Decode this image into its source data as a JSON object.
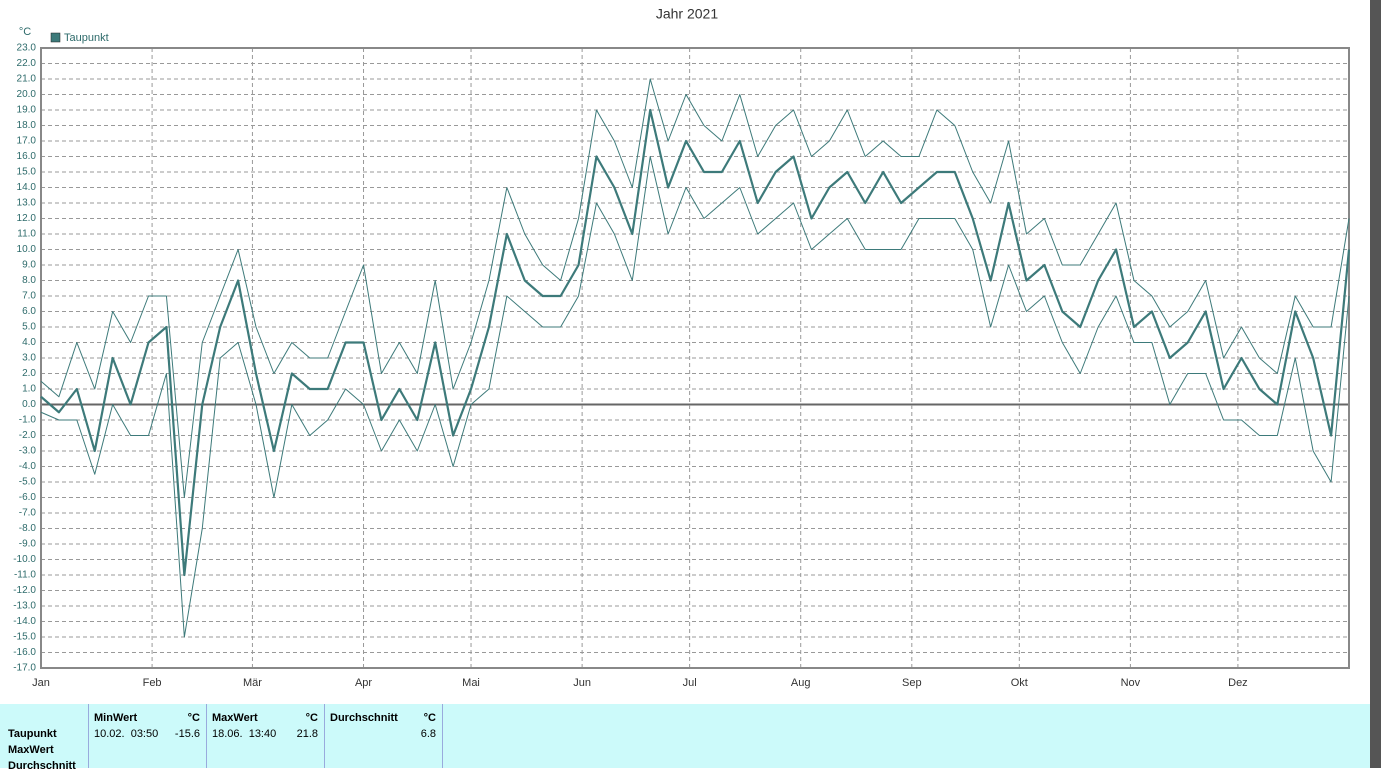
{
  "chart_data": {
    "type": "line",
    "title": "Jahr 2021",
    "y_unit": "°C",
    "x": [
      0,
      5,
      10,
      15,
      20,
      25,
      30,
      35,
      40,
      45,
      50,
      55,
      60,
      65,
      70,
      75,
      80,
      85,
      90,
      95,
      100,
      105,
      110,
      115,
      120,
      125,
      130,
      135,
      140,
      145,
      150,
      155,
      160,
      165,
      170,
      175,
      180,
      185,
      190,
      195,
      200,
      205,
      210,
      215,
      220,
      225,
      230,
      235,
      240,
      245,
      250,
      255,
      260,
      265,
      270,
      275,
      280,
      285,
      290,
      295,
      300,
      305,
      310,
      315,
      320,
      325,
      330,
      335,
      340,
      345,
      350,
      355,
      360,
      365
    ],
    "series": [
      {
        "name": "Taupunkt",
        "color": "#3d7a7a",
        "width": 2.2,
        "values": [
          0.5,
          -0.5,
          1,
          -3,
          3,
          0,
          4,
          5,
          -11,
          0,
          5,
          8,
          2,
          -3,
          2,
          1,
          1,
          4,
          4,
          -1,
          1,
          -1,
          4,
          -2,
          1,
          5,
          11,
          8,
          7,
          7,
          9,
          16,
          14,
          11,
          19,
          14,
          17,
          15,
          15,
          17,
          13,
          15,
          16,
          12,
          14,
          15,
          13,
          15,
          13,
          14,
          15,
          15,
          12,
          8,
          13,
          8,
          9,
          6,
          5,
          8,
          10,
          5,
          6,
          3,
          4,
          6,
          1,
          3,
          1,
          0,
          6,
          3,
          -2,
          10
        ]
      },
      {
        "color": "#3d7a7a",
        "width": 1,
        "values": [
          -0.5,
          -1,
          -1,
          -4.5,
          0,
          -2,
          -2,
          2,
          -15,
          -8,
          3,
          4,
          0,
          -6,
          0,
          -2,
          -1,
          1,
          0,
          -3,
          -1,
          -3,
          0,
          -4,
          0,
          1,
          7,
          6,
          5,
          5,
          7,
          13,
          11,
          8,
          16,
          11,
          14,
          12,
          13,
          14,
          11,
          12,
          13,
          10,
          11,
          12,
          10,
          10,
          10,
          12,
          12,
          12,
          10,
          5,
          9,
          6,
          7,
          4,
          2,
          5,
          7,
          4,
          4,
          0,
          2,
          2,
          -1,
          -1,
          -2,
          -2,
          3,
          -3,
          -5,
          7
        ]
      },
      {
        "color": "#3d7a7a",
        "width": 1,
        "values": [
          1.5,
          0.5,
          4,
          1,
          6,
          4,
          7,
          7,
          -6,
          4,
          7,
          10,
          5,
          2,
          4,
          3,
          3,
          6,
          9,
          2,
          4,
          2,
          8,
          1,
          4,
          8,
          14,
          11,
          9,
          8,
          12,
          19,
          17,
          14,
          21,
          17,
          20,
          18,
          17,
          20,
          16,
          18,
          19,
          16,
          17,
          19,
          16,
          17,
          16,
          16,
          19,
          18,
          15,
          13,
          17,
          11,
          12,
          9,
          9,
          11,
          13,
          8,
          7,
          5,
          6,
          8,
          3,
          5,
          3,
          2,
          7,
          5,
          5,
          12
        ]
      }
    ],
    "xlim": [
      0,
      365
    ],
    "xticks": [
      {
        "value": 0,
        "label": "Jan"
      },
      {
        "value": 31,
        "label": "Feb"
      },
      {
        "value": 59,
        "label": "Mär"
      },
      {
        "value": 90,
        "label": "Apr"
      },
      {
        "value": 120,
        "label": "Mai"
      },
      {
        "value": 151,
        "label": "Jun"
      },
      {
        "value": 181,
        "label": "Jul"
      },
      {
        "value": 212,
        "label": "Aug"
      },
      {
        "value": 243,
        "label": "Sep"
      },
      {
        "value": 273,
        "label": "Okt"
      },
      {
        "value": 304,
        "label": "Nov"
      },
      {
        "value": 334,
        "label": "Dez"
      }
    ],
    "ylim": [
      -17,
      23
    ],
    "yticks": [
      {
        "value": 23,
        "label": "23.0"
      },
      {
        "value": 22,
        "label": "22.0"
      },
      {
        "value": 21,
        "label": "21.0"
      },
      {
        "value": 20,
        "label": "20.0"
      },
      {
        "value": 19,
        "label": "19.0"
      },
      {
        "value": 18,
        "label": "18.0"
      },
      {
        "value": 17,
        "label": "17.0"
      },
      {
        "value": 16,
        "label": "16.0"
      },
      {
        "value": 15,
        "label": "15.0"
      },
      {
        "value": 14,
        "label": "14.0"
      },
      {
        "value": 13,
        "label": "13.0"
      },
      {
        "value": 12,
        "label": "12.0"
      },
      {
        "value": 11,
        "label": "11.0"
      },
      {
        "value": 10,
        "label": "10.0"
      },
      {
        "value": 9,
        "label": "9.0"
      },
      {
        "value": 8,
        "label": "8.0"
      },
      {
        "value": 7,
        "label": "7.0"
      },
      {
        "value": 6,
        "label": "6.0"
      },
      {
        "value": 5,
        "label": "5.0"
      },
      {
        "value": 4,
        "label": "4.0"
      },
      {
        "value": 3,
        "label": "3.0"
      },
      {
        "value": 2,
        "label": "2.0"
      },
      {
        "value": 1,
        "label": "1.0"
      },
      {
        "value": 0,
        "label": "0.0"
      },
      {
        "value": -1,
        "label": "-1.0"
      },
      {
        "value": -2,
        "label": "-2.0"
      },
      {
        "value": -3,
        "label": "-3.0"
      },
      {
        "value": -4,
        "label": "-4.0"
      },
      {
        "value": -5,
        "label": "-5.0"
      },
      {
        "value": -6,
        "label": "-6.0"
      },
      {
        "value": -7,
        "label": "-7.0"
      },
      {
        "value": -8,
        "label": "-8.0"
      },
      {
        "value": -9,
        "label": "-9.0"
      },
      {
        "value": -10,
        "label": "-10.0"
      },
      {
        "value": -11,
        "label": "-11.0"
      },
      {
        "value": -12,
        "label": "-12.0"
      },
      {
        "value": -13,
        "label": "-13.0"
      },
      {
        "value": -14,
        "label": "-14.0"
      },
      {
        "value": -15,
        "label": "-15.0"
      },
      {
        "value": -16,
        "label": "-16.0"
      },
      {
        "value": -17,
        "label": "-17.0"
      }
    ],
    "grid": true
  },
  "stats": {
    "row_labels": [
      "Taupunkt",
      "MaxWert",
      "Durchschnitt"
    ],
    "columns": [
      {
        "title": "MinWert",
        "unit": "°C",
        "cells": [
          "10.02.  03:50",
          "-15.6"
        ]
      },
      {
        "title": "MaxWert",
        "unit": "°C",
        "cells": [
          "18.06.  13:40",
          "21.8"
        ]
      },
      {
        "title": "Durchschnitt",
        "unit": "°C",
        "cells": [
          "6.8"
        ]
      }
    ]
  }
}
